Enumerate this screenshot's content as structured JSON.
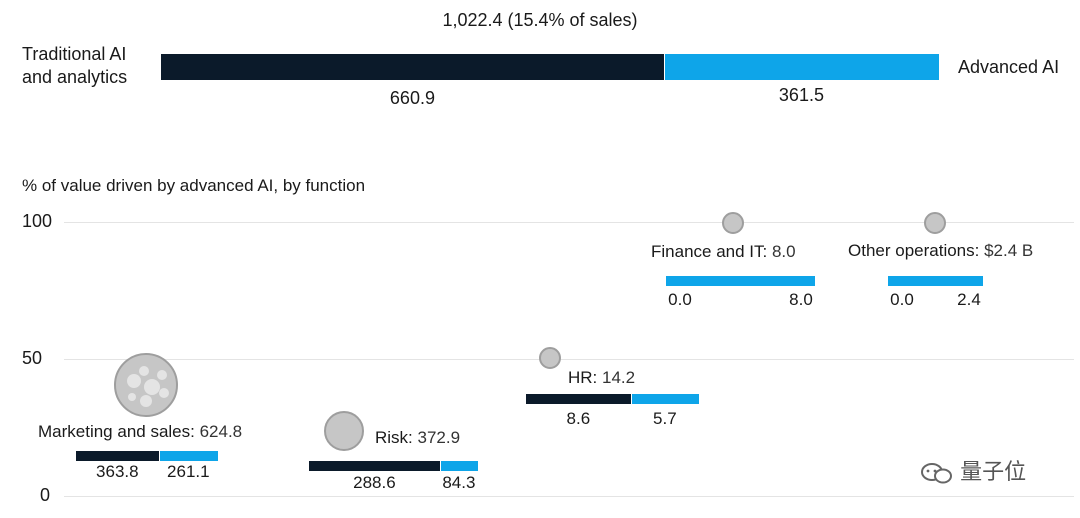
{
  "header": {
    "total_label": "1,022.4 (15.4% of sales)",
    "left_label": "Traditional AI and analytics",
    "right_label": "Advanced AI",
    "traditional_value": "660.9",
    "advanced_value": "361.5"
  },
  "colors": {
    "traditional": "#0b1a2a",
    "advanced": "#0ea5e9",
    "bubble": "#c6c6c6",
    "grid": "#e4e4e4"
  },
  "subtitle": "% of value driven by advanced AI, by function",
  "watermark": "量子位",
  "chart_data": {
    "type": "scatter",
    "ylabel": "% of value driven by advanced AI, by function",
    "ylim": [
      0,
      100
    ],
    "yticks": [
      "100",
      "50",
      "0"
    ],
    "total": {
      "value": 1022.4,
      "label": "1,022.4 (15.4% of sales)",
      "traditional": 660.9,
      "advanced": 361.5
    },
    "points": [
      {
        "label": "Marketing and sales",
        "value_text": "624.8",
        "total": 624.8,
        "traditional": 363.8,
        "advanced": 261.1,
        "traditional_text": "363.8",
        "advanced_text": "261.1"
      },
      {
        "label": "Risk",
        "value_text": "372.9",
        "total": 372.9,
        "traditional": 288.6,
        "advanced": 84.3,
        "traditional_text": "288.6",
        "advanced_text": "84.3"
      },
      {
        "label": "HR",
        "value_text": "14.2",
        "total": 14.2,
        "traditional": 8.6,
        "advanced": 5.7,
        "traditional_text": "8.6",
        "advanced_text": "5.7"
      },
      {
        "label": "Finance and IT",
        "value_text": "8.0",
        "total": 8.0,
        "traditional": 0.0,
        "advanced": 8.0,
        "traditional_text": "0.0",
        "advanced_text": "8.0"
      },
      {
        "label": "Other operations",
        "value_text": "$2.4 B",
        "total": 2.4,
        "traditional": 0.0,
        "advanced": 2.4,
        "traditional_text": "0.0",
        "advanced_text": "2.4"
      }
    ]
  }
}
